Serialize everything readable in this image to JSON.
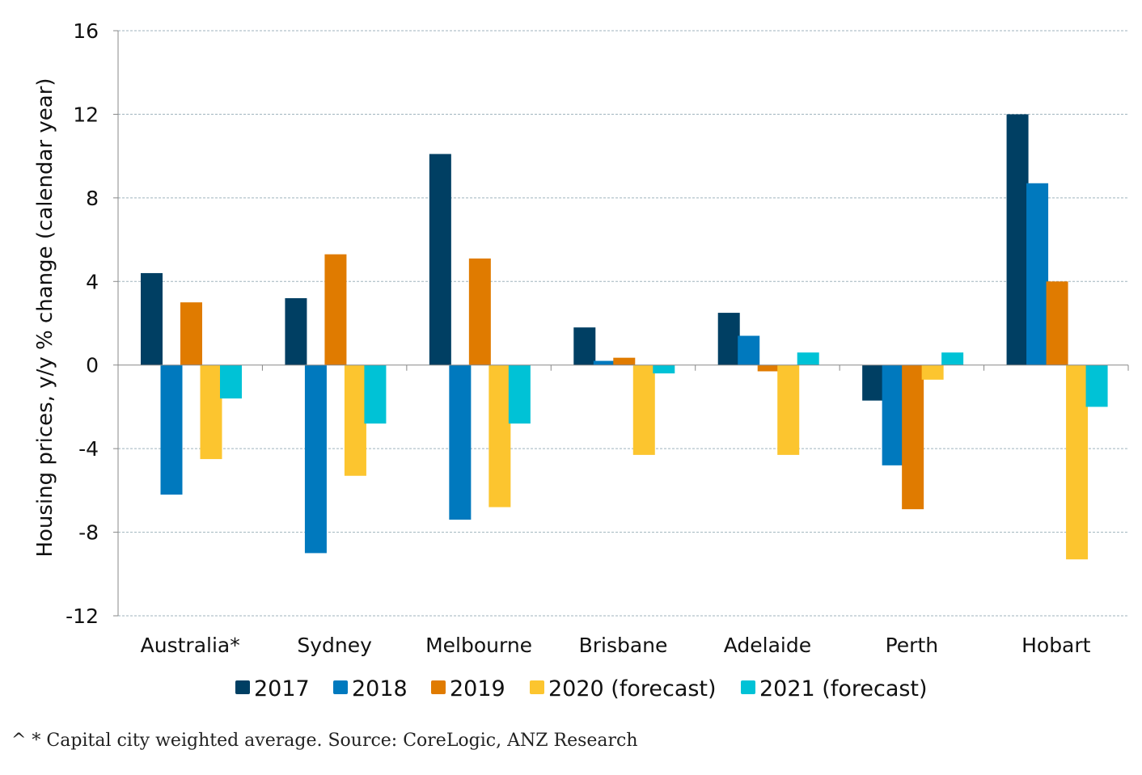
{
  "chart_data": {
    "type": "bar",
    "title": "",
    "xlabel": "",
    "ylabel": "Housing prices, y/y % change (calendar year)",
    "ylim": [
      -12,
      16
    ],
    "yticks": [
      -12,
      -8,
      -4,
      0,
      4,
      8,
      12,
      16
    ],
    "grid": true,
    "legend_position": "bottom",
    "categories": [
      "Australia*",
      "Sydney",
      "Melbourne",
      "Brisbane",
      "Adelaide",
      "Perth",
      "Hobart"
    ],
    "series": [
      {
        "name": "2017",
        "color": "#003f63",
        "values": [
          4.4,
          3.2,
          10.1,
          1.8,
          2.5,
          -1.7,
          12.0
        ]
      },
      {
        "name": "2018",
        "color": "#0079be",
        "values": [
          -6.2,
          -9.0,
          -7.4,
          0.2,
          1.4,
          -4.8,
          8.7
        ]
      },
      {
        "name": "2019",
        "color": "#e07b00",
        "values": [
          3.0,
          5.3,
          5.1,
          0.35,
          -0.3,
          -6.9,
          4.0
        ]
      },
      {
        "name": "2020 (forecast)",
        "color": "#fcc52f",
        "values": [
          -4.5,
          -5.3,
          -6.8,
          -4.3,
          -4.3,
          -0.7,
          -9.3
        ]
      },
      {
        "name": "2021 (forecast)",
        "color": "#00c2d6",
        "values": [
          -1.6,
          -2.8,
          -2.8,
          -0.4,
          0.6,
          0.6,
          -2.0
        ]
      }
    ]
  },
  "footnote": "^ * Capital city weighted average. Source: CoreLogic, ANZ Research"
}
